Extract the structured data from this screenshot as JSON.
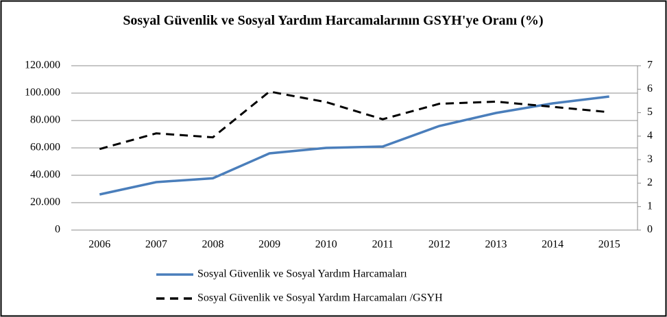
{
  "chart_data": {
    "type": "line",
    "title": "Sosyal Güvenlik ve Sosyal Yardım Harcamalarının GSYH'ye Oranı (%)",
    "categories": [
      "2006",
      "2007",
      "2008",
      "2009",
      "2010",
      "2011",
      "2012",
      "2013",
      "2014",
      "2015"
    ],
    "series": [
      {
        "name": "Sosyal Güvenlik ve Sosyal Yardım Harcamaları",
        "color": "#4a7ebb",
        "dash": false,
        "axis": "y",
        "values": [
          26000,
          35000,
          37800,
          56000,
          60000,
          61000,
          76000,
          85500,
          92500,
          97500
        ]
      },
      {
        "name": "Sosyal Güvenlik ve Sosyal Yardım Harcamaları /GSYH",
        "color": "#000000",
        "dash": true,
        "axis": "y2",
        "values": [
          3.45,
          4.12,
          3.95,
          5.9,
          5.45,
          4.72,
          5.38,
          5.47,
          5.25,
          5.02
        ]
      }
    ],
    "ylim": [
      0,
      120000
    ],
    "yticks": [
      0,
      {
        "value": 20000,
        "label": "20.000"
      },
      {
        "value": 40000,
        "label": "40.000"
      },
      {
        "value": 60000,
        "label": "60.000"
      },
      {
        "value": 80000,
        "label": "80.000"
      },
      {
        "value": 100000,
        "label": "100.000"
      },
      {
        "value": 120000,
        "label": "120.000"
      }
    ],
    "y2lim": [
      0,
      7
    ],
    "y2ticks": [
      0,
      1,
      2,
      3,
      4,
      5,
      6,
      7
    ],
    "grid": true,
    "legend": "bottom"
  }
}
